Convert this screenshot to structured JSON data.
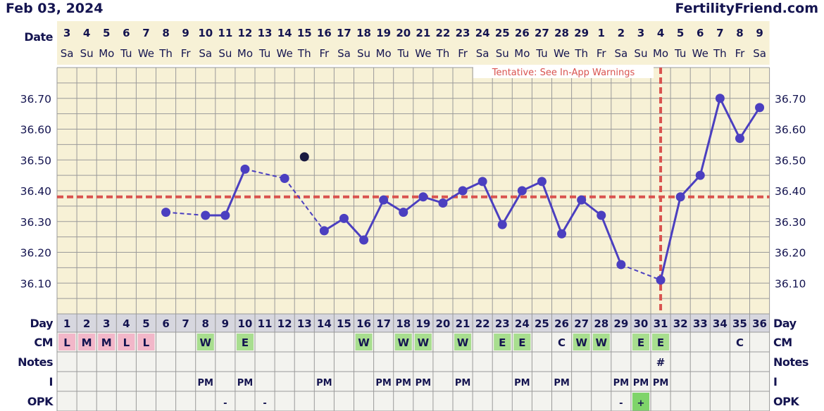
{
  "header": {
    "date": "Feb 03, 2024",
    "site": "FertilityFriend.com"
  },
  "labels": {
    "date": "Date",
    "day": "Day",
    "cm": "CM",
    "notes": "Notes",
    "i": "I",
    "opk": "OPK"
  },
  "tentative_note": "Tentative: See In-App Warnings",
  "colors": {
    "background": "#f7f1d6",
    "grid": "#9a9a9a",
    "line": "#4b3fc0",
    "coverline": "#d9534f",
    "ovulation": "#d9534f",
    "menses_cell": "#f2b7c9",
    "cm_cell": "#a8de8f",
    "opk_positive": "#7fd46a",
    "daycell": "#d7d7df",
    "row_bg": "#f3f3ef",
    "discarded_point": "#1a1a40"
  },
  "chart_data": {
    "type": "line",
    "title": "",
    "xlabel": "Day",
    "ylabel": "",
    "ylim": [
      36.0,
      36.8
    ],
    "yticks": [
      "36.10",
      "36.20",
      "36.30",
      "36.40",
      "36.50",
      "36.60",
      "36.70"
    ],
    "grid": true,
    "coverline": 36.38,
    "ovulation_day": 31,
    "cycle_days": [
      1,
      2,
      3,
      4,
      5,
      6,
      7,
      8,
      9,
      10,
      11,
      12,
      13,
      14,
      15,
      16,
      17,
      18,
      19,
      20,
      21,
      22,
      23,
      24,
      25,
      26,
      27,
      28,
      29,
      30,
      31,
      32,
      33,
      34,
      35,
      36
    ],
    "dates": [
      "3",
      "4",
      "5",
      "6",
      "7",
      "8",
      "9",
      "10",
      "11",
      "12",
      "13",
      "14",
      "15",
      "16",
      "17",
      "18",
      "19",
      "20",
      "21",
      "22",
      "23",
      "24",
      "25",
      "26",
      "27",
      "28",
      "29",
      "1",
      "2",
      "3",
      "4",
      "5",
      "6",
      "7",
      "8",
      "9"
    ],
    "weekdays": [
      "Sa",
      "Su",
      "Mo",
      "Tu",
      "We",
      "Th",
      "Fr",
      "Sa",
      "Su",
      "Mo",
      "Tu",
      "We",
      "Th",
      "Fr",
      "Sa",
      "Su",
      "Mo",
      "Tu",
      "We",
      "Th",
      "Fr",
      "Sa",
      "Su",
      "Mo",
      "Tu",
      "We",
      "Th",
      "Fr",
      "Sa",
      "Su",
      "Mo",
      "Tu",
      "We",
      "Th",
      "Fr",
      "Sa"
    ],
    "series": [
      {
        "temps": [
          null,
          null,
          null,
          null,
          null,
          36.33,
          null,
          36.32,
          36.32,
          36.47,
          null,
          36.44,
          null,
          36.27,
          36.31,
          36.24,
          36.37,
          36.33,
          36.38,
          36.36,
          36.4,
          36.43,
          36.29,
          36.4,
          36.43,
          36.26,
          36.37,
          36.32,
          36.16,
          null,
          36.11,
          36.38,
          36.45,
          36.7,
          36.57,
          36.67
        ]
      }
    ],
    "discarded_points": [
      {
        "day": 13,
        "temp": 36.51
      }
    ],
    "cm": [
      "L",
      "M",
      "M",
      "L",
      "L",
      "",
      "",
      "W",
      "",
      "E",
      "",
      "",
      "",
      "",
      "",
      "W",
      "",
      "W",
      "W",
      "",
      "W",
      "",
      "E",
      "E",
      "",
      "C",
      "W",
      "W",
      "",
      "E",
      "E",
      "",
      "",
      "",
      "C",
      ""
    ],
    "notes": [
      "",
      "",
      "",
      "",
      "",
      "",
      "",
      "",
      "",
      "",
      "",
      "",
      "",
      "",
      "",
      "",
      "",
      "",
      "",
      "",
      "",
      "",
      "",
      "",
      "",
      "",
      "",
      "",
      "",
      "",
      "#",
      "",
      "",
      "",
      "",
      ""
    ],
    "intercourse": [
      "",
      "",
      "",
      "",
      "",
      "",
      "",
      "PM",
      "",
      "PM",
      "",
      "",
      "",
      "PM",
      "",
      "",
      "PM",
      "PM",
      "PM",
      "",
      "PM",
      "",
      "",
      "PM",
      "",
      "PM",
      "",
      "",
      "PM",
      "PM",
      "PM",
      "",
      "",
      "",
      "",
      ""
    ],
    "opk": [
      "",
      "",
      "",
      "",
      "",
      "",
      "",
      "",
      "-",
      "",
      "-",
      "",
      "",
      "",
      "",
      "",
      "",
      "",
      "",
      "",
      "",
      "",
      "",
      "",
      "",
      "",
      "",
      "",
      "-",
      "+",
      "",
      "",
      "",
      "",
      "",
      ""
    ]
  }
}
